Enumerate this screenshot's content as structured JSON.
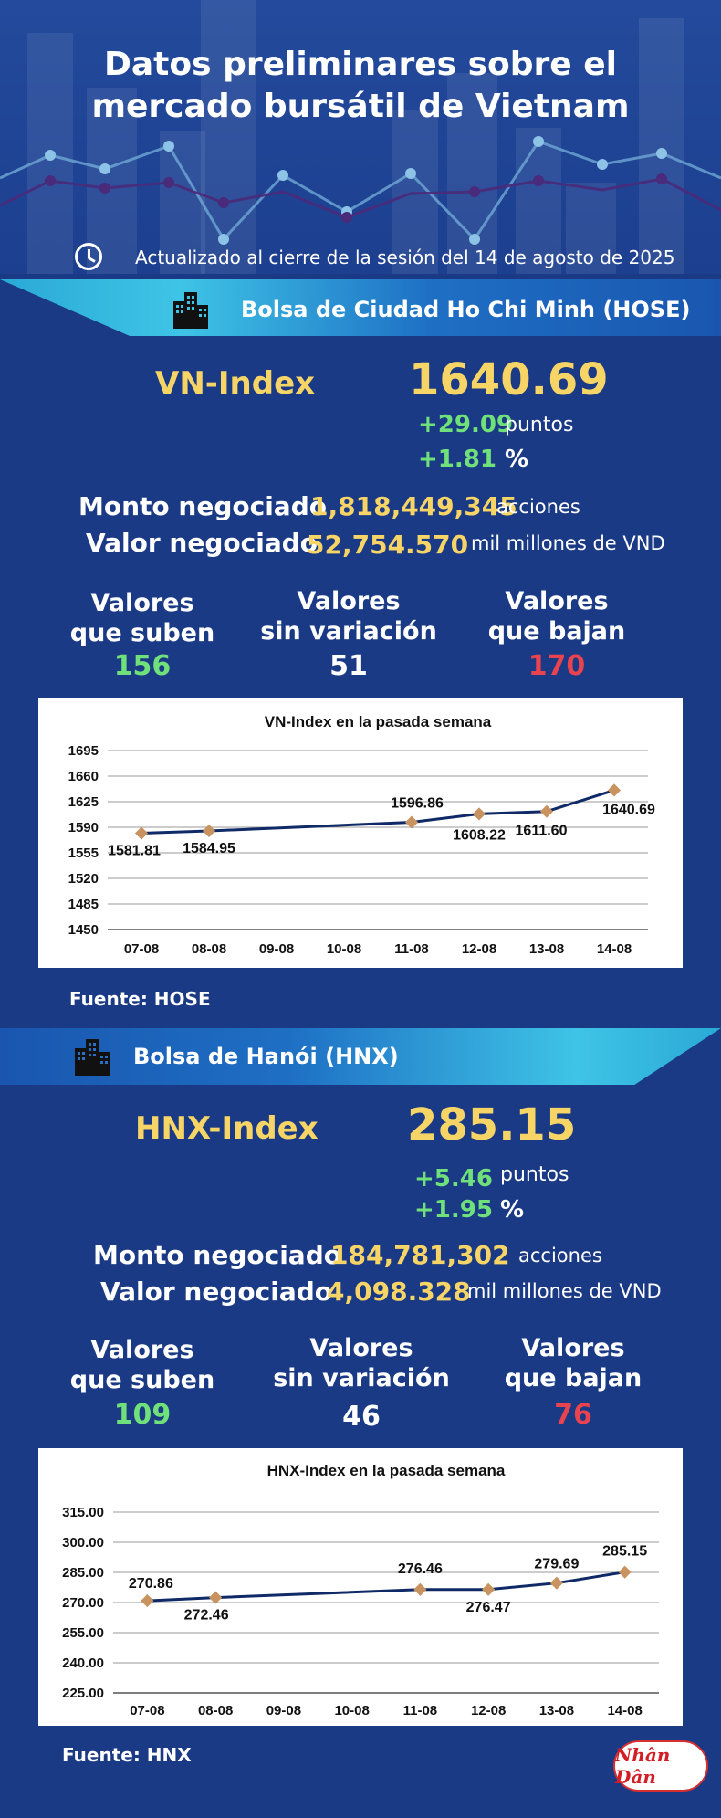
{
  "header": {
    "title_line1": "Datos preliminares sobre el",
    "title_line2": "mercado bursátil de Vietnam",
    "update": "Actualizado al cierre de la sesión del 14 de agosto de 2025"
  },
  "hose": {
    "banner": "Bolsa de Ciudad Ho Chi Minh (HOSE)",
    "index_name": "VN-Index",
    "index_value": "1640.69",
    "change_points": "+29.09",
    "points_label": "puntos",
    "change_pct": "+1.81",
    "pct_label": "%",
    "volume_label": "Monto negociado",
    "volume_value": "1,818,449,345",
    "volume_unit": "acciones",
    "value_label": "Valor negociado",
    "value_value": "52,754.570",
    "value_unit": "mil millones de VND",
    "up_label1": "Valores",
    "up_label2": "que suben",
    "up_count": "156",
    "flat_label1": "Valores",
    "flat_label2": "sin variación",
    "flat_count": "51",
    "down_label1": "Valores",
    "down_label2": "que bajan",
    "down_count": "170",
    "source": "Fuente: HOSE"
  },
  "hnx": {
    "banner": "Bolsa de Hanói (HNX)",
    "index_name": "HNX-Index",
    "index_value": "285.15",
    "change_points": "+5.46",
    "points_label": "puntos",
    "change_pct": "+1.95",
    "pct_label": "%",
    "volume_label": "Monto negociado",
    "volume_value": "184,781,302",
    "volume_unit": "acciones",
    "value_label": "Valor negociado",
    "value_value": "4,098.328",
    "value_unit": "mil millones de VND",
    "up_label1": "Valores",
    "up_label2": "que suben",
    "up_count": "109",
    "flat_label1": "Valores",
    "flat_label2": "sin variación",
    "flat_count": "46",
    "down_label1": "Valores",
    "down_label2": "que bajan",
    "down_count": "76",
    "source": "Fuente:  HNX"
  },
  "logo_text": "Nhân Dân",
  "colors": {
    "accent": "#f6d465",
    "up": "#6fe07a",
    "down": "#e8434f",
    "line": "#0f2a66",
    "marker": "#c8935f"
  },
  "chart_data": [
    {
      "type": "line",
      "title": "VN-Index en la pasada semana",
      "categories": [
        "07-08",
        "08-08",
        "09-08",
        "10-08",
        "11-08",
        "12-08",
        "13-08",
        "14-08"
      ],
      "points": [
        {
          "x": "07-08",
          "y": 1581.81,
          "label": "1581.81"
        },
        {
          "x": "08-08",
          "y": 1584.95,
          "label": "1584.95"
        },
        {
          "x": "11-08",
          "y": 1596.86,
          "label": "1596.86"
        },
        {
          "x": "12-08",
          "y": 1608.22,
          "label": "1608.22"
        },
        {
          "x": "13-08",
          "y": 1611.6,
          "label": "1611.60"
        },
        {
          "x": "14-08",
          "y": 1640.69,
          "label": "1640.69"
        }
      ],
      "yticks": [
        "1450",
        "1485",
        "1520",
        "1555",
        "1590",
        "1625",
        "1660",
        "1695"
      ],
      "ylim": [
        1450,
        1695
      ],
      "grid": true
    },
    {
      "type": "line",
      "title": "HNX-Index en la pasada semana",
      "categories": [
        "07-08",
        "08-08",
        "09-08",
        "10-08",
        "11-08",
        "12-08",
        "13-08",
        "14-08"
      ],
      "points": [
        {
          "x": "07-08",
          "y": 270.86,
          "label": "270.86"
        },
        {
          "x": "08-08",
          "y": 272.46,
          "label": "272.46"
        },
        {
          "x": "11-08",
          "y": 276.46,
          "label": "276.46"
        },
        {
          "x": "12-08",
          "y": 276.47,
          "label": "276.47"
        },
        {
          "x": "13-08",
          "y": 279.69,
          "label": "279.69"
        },
        {
          "x": "14-08",
          "y": 285.15,
          "label": "285.15"
        }
      ],
      "yticks": [
        "225.00",
        "240.00",
        "255.00",
        "270.00",
        "285.00",
        "300.00",
        "315.00"
      ],
      "ylim": [
        225,
        315
      ],
      "grid": true
    }
  ]
}
